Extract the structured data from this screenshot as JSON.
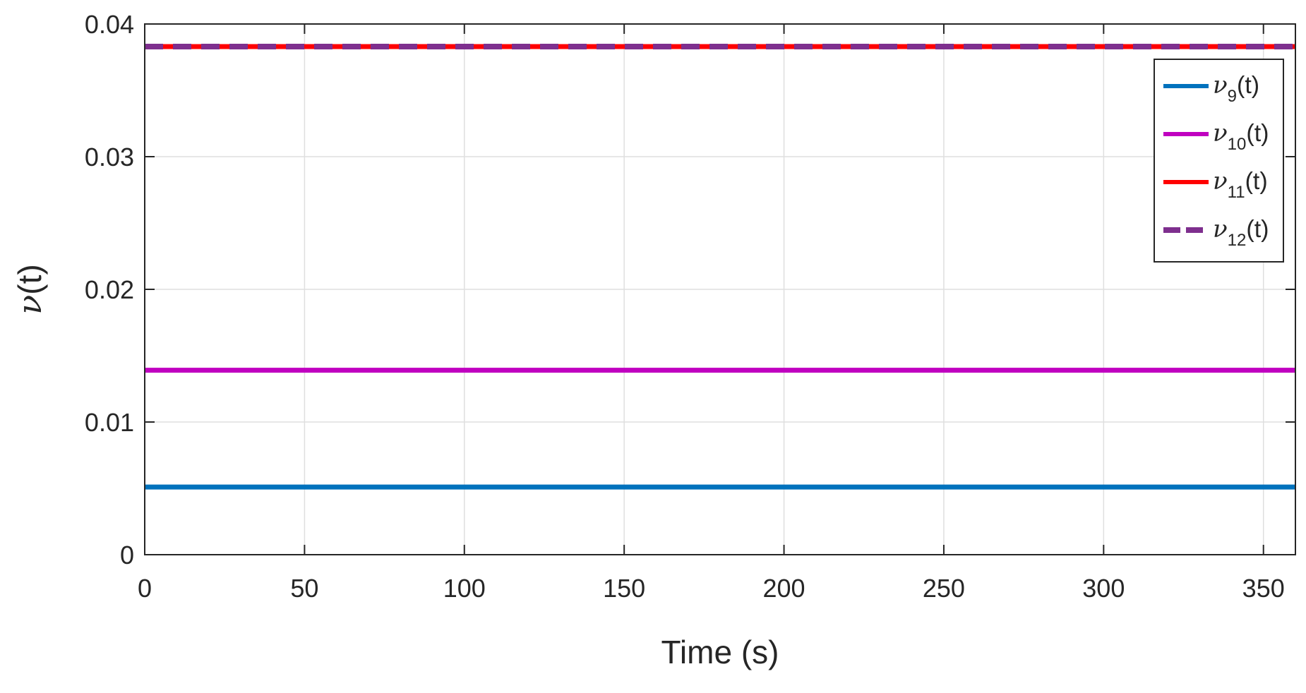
{
  "chart_data": {
    "type": "line",
    "xlabel": "Time (s)",
    "ylabel": {
      "symbol": "ν",
      "suffix": "(t)"
    },
    "xlim": [
      0,
      360
    ],
    "ylim": [
      0,
      0.04
    ],
    "xticks": [
      "0",
      "50",
      "100",
      "150",
      "200",
      "250",
      "300",
      "350"
    ],
    "yticks": [
      "0",
      "0.01",
      "0.02",
      "0.03",
      "0.04"
    ],
    "grid": true,
    "legend_position": "top-right",
    "series": [
      {
        "name": "ν9(t)",
        "symbol": "ν",
        "sub": "9",
        "suffix": "(t)",
        "color": "#0072BD",
        "dash": "solid",
        "x": [
          0,
          360
        ],
        "y": [
          0.0051,
          0.0051
        ]
      },
      {
        "name": "ν10(t)",
        "symbol": "ν",
        "sub": "10",
        "suffix": "(t)",
        "color": "#C000C0",
        "dash": "solid",
        "x": [
          0,
          360
        ],
        "y": [
          0.0139,
          0.0139
        ]
      },
      {
        "name": "ν11(t)",
        "symbol": "ν",
        "sub": "11",
        "suffix": "(t)",
        "color": "#FF0000",
        "dash": "solid",
        "x": [
          0,
          360
        ],
        "y": [
          0.0383,
          0.0383
        ]
      },
      {
        "name": "ν12(t)",
        "symbol": "ν",
        "sub": "12",
        "suffix": "(t)",
        "color": "#7E2F8E",
        "dash": "dashed",
        "x": [
          0,
          360
        ],
        "y": [
          0.0383,
          0.0383
        ]
      }
    ]
  }
}
